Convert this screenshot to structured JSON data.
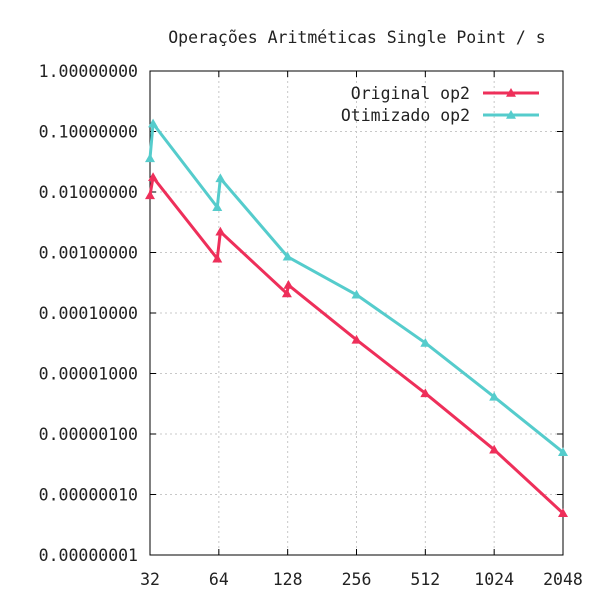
{
  "chart_data": {
    "type": "line",
    "title": "Operações Aritméticas Single Point / s",
    "xlabel": "",
    "ylabel": "",
    "x_scale": "log2",
    "y_scale": "log10",
    "xlim": [
      32,
      2048
    ],
    "ylim": [
      1e-08,
      1
    ],
    "x_ticks": [
      32,
      64,
      128,
      256,
      512,
      1024,
      2048
    ],
    "x_tick_labels": [
      "32",
      "64",
      "128",
      "256",
      "512",
      "1024",
      "2048"
    ],
    "y_ticks": [
      1,
      0.1,
      0.01,
      0.001,
      0.0001,
      1e-05,
      1e-06,
      1e-07,
      1e-08
    ],
    "y_tick_labels": [
      "1.00000000",
      "0.10000000",
      "0.01000000",
      "0.00100000",
      "0.00010000",
      "0.00001000",
      "0.00000100",
      "0.00000010",
      "0.00000001"
    ],
    "grid": true,
    "legend_position": "top-right",
    "series": [
      {
        "name": "Original op2",
        "color": "#ee2f5a",
        "marker": "triangle",
        "points": [
          {
            "x": 32,
            "y": 0.0088
          },
          {
            "x": 33,
            "y": 0.0175
          },
          {
            "x": 63,
            "y": 0.00079
          },
          {
            "x": 65,
            "y": 0.0022
          },
          {
            "x": 127,
            "y": 0.00021
          },
          {
            "x": 129,
            "y": 0.00029
          },
          {
            "x": 256,
            "y": 3.6e-05
          },
          {
            "x": 512,
            "y": 4.7e-06
          },
          {
            "x": 1024,
            "y": 5.5e-07
          },
          {
            "x": 2048,
            "y": 4.9e-08
          }
        ]
      },
      {
        "name": "Otimizado op2",
        "color": "#55cccc",
        "marker": "triangle",
        "points": [
          {
            "x": 32,
            "y": 0.036
          },
          {
            "x": 33,
            "y": 0.135
          },
          {
            "x": 63,
            "y": 0.0056
          },
          {
            "x": 65,
            "y": 0.0168
          },
          {
            "x": 128,
            "y": 0.00085
          },
          {
            "x": 256,
            "y": 0.0002
          },
          {
            "x": 512,
            "y": 3.2e-05
          },
          {
            "x": 1024,
            "y": 4.1e-06
          },
          {
            "x": 2048,
            "y": 5e-07
          }
        ]
      }
    ]
  }
}
